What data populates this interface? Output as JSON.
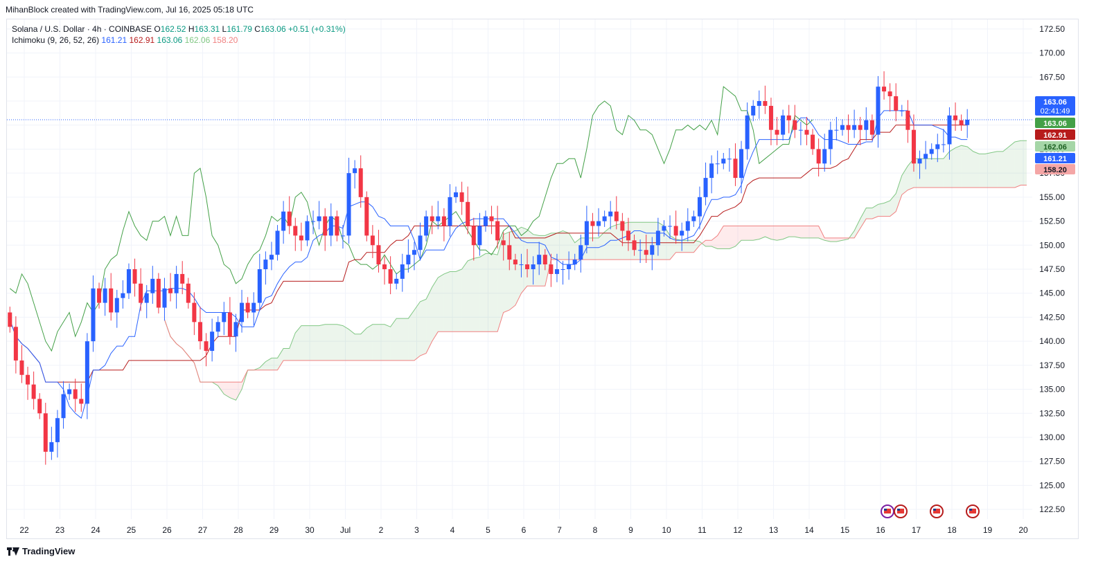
{
  "header": {
    "credit": "MihanBlock created with TradingView.com, Jul 16, 2025 05:18 UTC"
  },
  "legend": {
    "symbol": "Solana / U.S. Dollar · 4h · COINBASE",
    "ohlc": [
      {
        "k": "O",
        "v": "162.52"
      },
      {
        "k": "H",
        "v": "163.31"
      },
      {
        "k": "L",
        "v": "161.79"
      },
      {
        "k": "C",
        "v": "163.06"
      }
    ],
    "change": "+0.51 (+0.31%)",
    "indicator": "Ichimoku (9, 26, 52, 26)",
    "indicator_values": [
      {
        "v": "161.21",
        "color": "#2962ff"
      },
      {
        "v": "162.91",
        "color": "#b71c1c"
      },
      {
        "v": "163.06",
        "color": "#089981"
      },
      {
        "v": "162.06",
        "color": "#81c784"
      },
      {
        "v": "158.20",
        "color": "#f08080"
      }
    ]
  },
  "price_badges": [
    {
      "price": 163.06,
      "text": "163.06",
      "sub": "02:41:49",
      "color": "#2962ff"
    },
    {
      "price": 163.06,
      "text": "163.06",
      "color": "#43a047"
    },
    {
      "price": 162.91,
      "text": "162.91",
      "color": "#b71c1c"
    },
    {
      "price": 162.06,
      "text": "162.06",
      "color": "#a5d6a7",
      "textColor": "#1b5e20"
    },
    {
      "price": 161.21,
      "text": "161.21",
      "color": "#2962ff"
    },
    {
      "price": 158.2,
      "text": "158.20",
      "color": "#f4a6a6",
      "textColor": "#131722"
    }
  ],
  "brand": {
    "name": "TradingView"
  },
  "colors": {
    "up": "#2962ff",
    "down": "#f23645",
    "tenkan": "#2962ff",
    "kijun": "#b71c1c",
    "chikou": "#43a047",
    "spanA": "#81c784",
    "spanB": "#f08080"
  },
  "chart_data": {
    "type": "candlestick",
    "ylim": [
      121.5,
      173.5
    ],
    "y_ticks": [
      122.5,
      125,
      127.5,
      130,
      132.5,
      135,
      137.5,
      140,
      142.5,
      145,
      147.5,
      150,
      152.5,
      155,
      157.5,
      160,
      162.5,
      165,
      167.5,
      170,
      172.5
    ],
    "x_ticks": [
      {
        "label": "22",
        "day": 0
      },
      {
        "label": "23",
        "day": 1
      },
      {
        "label": "24",
        "day": 2
      },
      {
        "label": "25",
        "day": 3
      },
      {
        "label": "26",
        "day": 4
      },
      {
        "label": "27",
        "day": 5
      },
      {
        "label": "28",
        "day": 6
      },
      {
        "label": "29",
        "day": 7
      },
      {
        "label": "30",
        "day": 8
      },
      {
        "label": "Jul",
        "day": 9
      },
      {
        "label": "2",
        "day": 10
      },
      {
        "label": "3",
        "day": 11
      },
      {
        "label": "4",
        "day": 12
      },
      {
        "label": "5",
        "day": 13
      },
      {
        "label": "6",
        "day": 14
      },
      {
        "label": "7",
        "day": 15
      },
      {
        "label": "8",
        "day": 16
      },
      {
        "label": "9",
        "day": 17
      },
      {
        "label": "10",
        "day": 18
      },
      {
        "label": "11",
        "day": 19
      },
      {
        "label": "12",
        "day": 20
      },
      {
        "label": "13",
        "day": 21
      },
      {
        "label": "14",
        "day": 22
      },
      {
        "label": "15",
        "day": 23
      },
      {
        "label": "16",
        "day": 24
      },
      {
        "label": "17",
        "day": 25
      },
      {
        "label": "18",
        "day": 26
      },
      {
        "label": "19",
        "day": 27
      },
      {
        "label": "20",
        "day": 28
      }
    ],
    "candle_closes": [
      141.5,
      138.0,
      136.5,
      135.5,
      134.0,
      132.5,
      128.5,
      129.5,
      132.0,
      134.5,
      135.0,
      134.0,
      133.5,
      140.0,
      145.5,
      144.0,
      145.5,
      143.0,
      144.5,
      145.0,
      147.5,
      146.0,
      144.0,
      145.0,
      146.5,
      143.5,
      145.5,
      145.0,
      147.0,
      146.0,
      144.0,
      142.0,
      140.0,
      139.0,
      141.0,
      142.0,
      143.0,
      140.5,
      142.0,
      144.0,
      143.0,
      144.0,
      147.5,
      148.5,
      149.0,
      151.5,
      153.5,
      152.0,
      151.0,
      150.5,
      152.5,
      152.5,
      153.0,
      151.0,
      153.0,
      151.0,
      151.0,
      157.5,
      158.0,
      155.0,
      151.0,
      150.0,
      148.0,
      147.5,
      146.0,
      146.5,
      148.0,
      149.0,
      149.5,
      151.0,
      153.0,
      152.5,
      153.0,
      152.0,
      155.0,
      155.5,
      154.5,
      152.0,
      150.0,
      152.0,
      153.0,
      152.5,
      150.5,
      150.0,
      148.5,
      148.0,
      148.0,
      147.5,
      148.0,
      149.0,
      148.0,
      147.0,
      147.5,
      147.5,
      148.0,
      148.5,
      150.0,
      152.5,
      152.0,
      152.5,
      153.0,
      153.5,
      152.5,
      151.5,
      150.5,
      149.5,
      149.5,
      149.0,
      150.0,
      151.5,
      152.0,
      152.0,
      151.0,
      151.5,
      152.5,
      153.0,
      155.0,
      157.0,
      158.5,
      158.5,
      159.0,
      159.0,
      157.0,
      160.0,
      163.5,
      164.5,
      165.0,
      164.5,
      162.0,
      161.5,
      163.5,
      163.0,
      162.0,
      162.0,
      161.5,
      160.0,
      158.5,
      160.0,
      162.0,
      162.0,
      162.5,
      162.0,
      162.5,
      162.0,
      163.0,
      161.5,
      166.5,
      166.0,
      165.5,
      164.0,
      164.0,
      162.0,
      158.5,
      159.0,
      159.5,
      160.0,
      160.5,
      160.5,
      163.5,
      163.0,
      162.5,
      163.06
    ],
    "candles_count": 162,
    "days_visible": 29
  }
}
